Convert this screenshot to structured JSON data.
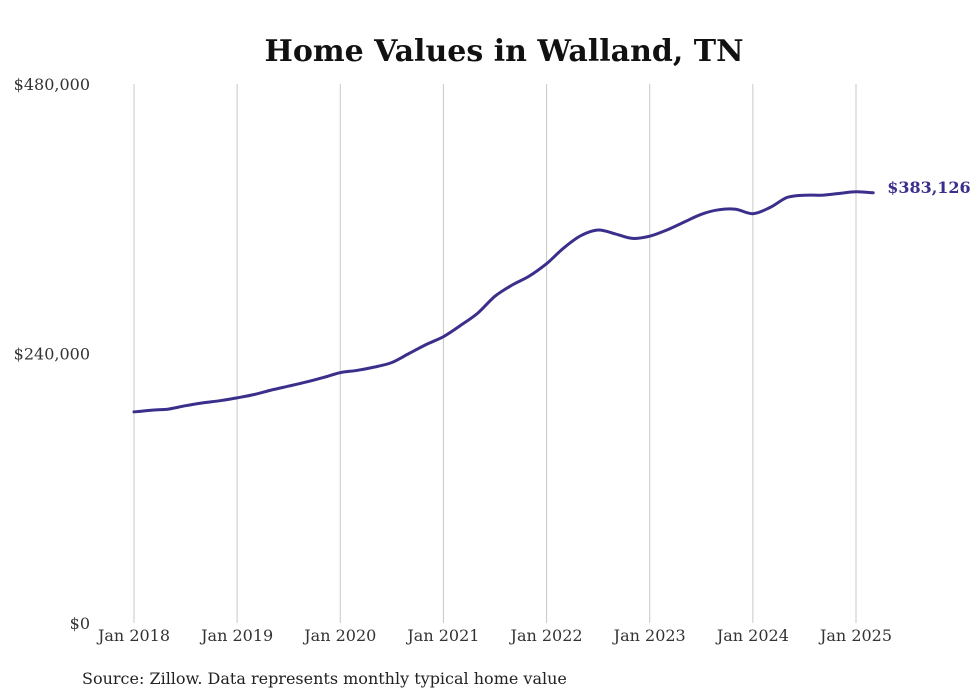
{
  "chart_data": {
    "type": "line",
    "title": "Home Values in Walland, TN",
    "xlabel": "",
    "ylabel": "",
    "x_ticks": [
      "Jan 2018",
      "Jan 2019",
      "Jan 2020",
      "Jan 2021",
      "Jan 2022",
      "Jan 2023",
      "Jan 2024",
      "Jan 2025"
    ],
    "y_ticks": [
      "$0",
      "$240,000",
      "$480,000"
    ],
    "ylim": [
      0,
      480000
    ],
    "grid": "vertical",
    "series": [
      {
        "color": "#3b2f8c",
        "end_label": "$383,126",
        "points": [
          [
            "2018-01",
            188000
          ],
          [
            "2018-03",
            189500
          ],
          [
            "2018-05",
            190500
          ],
          [
            "2018-07",
            193500
          ],
          [
            "2018-09",
            196000
          ],
          [
            "2018-11",
            198000
          ],
          [
            "2019-01",
            200500
          ],
          [
            "2019-03",
            203500
          ],
          [
            "2019-05",
            207500
          ],
          [
            "2019-07",
            211000
          ],
          [
            "2019-09",
            214500
          ],
          [
            "2019-11",
            218500
          ],
          [
            "2020-01",
            223000
          ],
          [
            "2020-03",
            225000
          ],
          [
            "2020-05",
            228000
          ],
          [
            "2020-07",
            232000
          ],
          [
            "2020-09",
            240000
          ],
          [
            "2020-11",
            248000
          ],
          [
            "2021-01",
            255000
          ],
          [
            "2021-03",
            265000
          ],
          [
            "2021-05",
            276000
          ],
          [
            "2021-07",
            291000
          ],
          [
            "2021-09",
            301000
          ],
          [
            "2021-11",
            309000
          ],
          [
            "2022-01",
            320000
          ],
          [
            "2022-03",
            334000
          ],
          [
            "2022-05",
            345000
          ],
          [
            "2022-07",
            350000
          ],
          [
            "2022-09",
            346500
          ],
          [
            "2022-11",
            342500
          ],
          [
            "2023-01",
            344500
          ],
          [
            "2023-03",
            350000
          ],
          [
            "2023-05",
            357000
          ],
          [
            "2023-07",
            364000
          ],
          [
            "2023-09",
            368000
          ],
          [
            "2023-11",
            368500
          ],
          [
            "2024-01",
            364500
          ],
          [
            "2024-03",
            370000
          ],
          [
            "2024-05",
            379000
          ],
          [
            "2024-07",
            381000
          ],
          [
            "2024-09",
            381000
          ],
          [
            "2024-11",
            382500
          ],
          [
            "2025-01",
            384000
          ],
          [
            "2025-03",
            383126
          ]
        ]
      }
    ]
  },
  "source_note": "Source: Zillow. Data represents monthly typical home value"
}
